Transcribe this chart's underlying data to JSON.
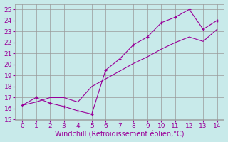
{
  "x": [
    0,
    1,
    2,
    3,
    4,
    5,
    6,
    7,
    8,
    9,
    10,
    11,
    12,
    13,
    14
  ],
  "y_jagged": [
    16.3,
    17.0,
    16.5,
    16.2,
    15.8,
    15.5,
    19.5,
    20.5,
    21.8,
    22.5,
    23.8,
    24.3,
    25.0,
    23.2,
    24.0
  ],
  "y_trend": [
    16.3,
    16.6,
    17.0,
    17.0,
    16.6,
    18.0,
    18.7,
    19.4,
    20.1,
    20.7,
    21.4,
    22.0,
    22.5,
    22.1,
    23.2
  ],
  "line_color": "#990099",
  "bg_color": "#c8eaea",
  "grid_color": "#999999",
  "xlabel": "Windchill (Refroidissement éolien,°C)",
  "xlim": [
    -0.5,
    14.5
  ],
  "ylim": [
    15,
    25.5
  ],
  "yticks": [
    15,
    16,
    17,
    18,
    19,
    20,
    21,
    22,
    23,
    24,
    25
  ],
  "xticks": [
    0,
    1,
    2,
    3,
    4,
    5,
    6,
    7,
    8,
    9,
    10,
    11,
    12,
    13,
    14
  ],
  "tick_fontsize": 6.5,
  "xlabel_fontsize": 7
}
